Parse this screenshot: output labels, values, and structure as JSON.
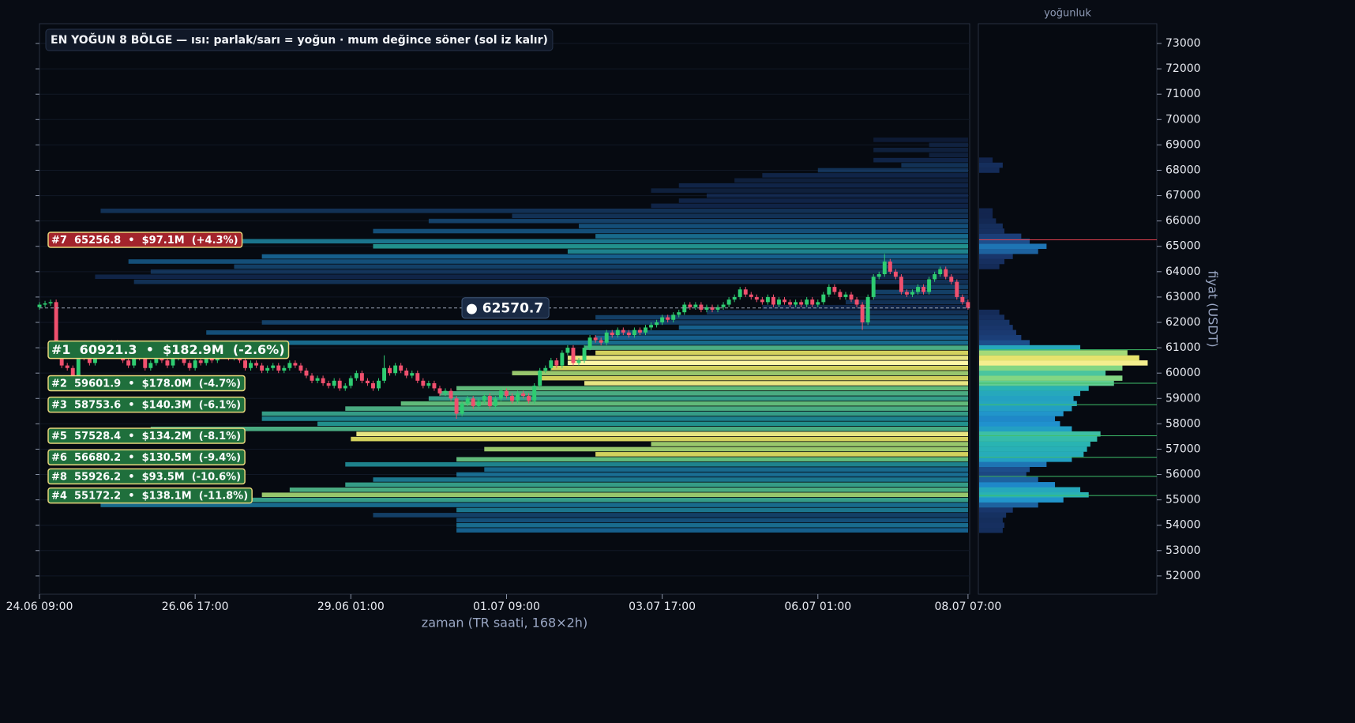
{
  "chart_data": {
    "type": "heatmap-candlestick",
    "title": "EN YOĞUN 8 BÖLGE — ısı: parlak/sarı = yoğun · mum değince söner (sol iz kalır)",
    "x_label": "zaman (TR saati, 168×2h)",
    "y_label": "fiyat (USDT)",
    "profile_label": "yoğunluk",
    "xlim": [
      0,
      167.3
    ],
    "xticks": [
      {
        "value": 0,
        "label": "24.06 09:00"
      },
      {
        "value": 28,
        "label": "26.06 17:00"
      },
      {
        "value": 56,
        "label": "29.06 01:00"
      },
      {
        "value": 84,
        "label": "01.07 09:00"
      },
      {
        "value": 112,
        "label": "03.07 17:00"
      },
      {
        "value": 140,
        "label": "06.07 01:00"
      },
      {
        "value": 167,
        "label": "08.07 07:00"
      }
    ],
    "ylim": [
      51280,
      73780
    ],
    "yticks": [
      52000,
      53000,
      54000,
      55000,
      56000,
      57000,
      58000,
      59000,
      60000,
      61000,
      62000,
      63000,
      64000,
      65000,
      66000,
      67000,
      68000,
      69000,
      70000,
      71000,
      72000,
      73000
    ],
    "grid": true,
    "profile_xlim": [
      0,
      104
    ],
    "colors": {
      "up": "#2ecc71",
      "down": "#f0506e",
      "zone_up": "#a3242c",
      "zone_down": "#1f6f3c",
      "zone_border": "#e9d77c"
    },
    "last_price": {
      "value": 62570.7,
      "label": "● 62570.7"
    },
    "candles": {
      "open": [
        62600,
        62700,
        62750,
        62800,
        60700,
        60300,
        60200,
        59900,
        61000,
        60600,
        60400,
        60800,
        61100,
        60900,
        61200,
        60800,
        60500,
        60300,
        60700,
        60600,
        60200,
        60400,
        60900,
        60500,
        60300,
        60600,
        60800,
        60400,
        60200,
        60500,
        60400,
        60600,
        60500,
        60700,
        60900,
        60600,
        60700,
        60500,
        60200,
        60400,
        60300,
        60100,
        60200,
        60300,
        60100,
        60200,
        60400,
        60300,
        60100,
        59900,
        59700,
        59800,
        59600,
        59500,
        59700,
        59400,
        59500,
        59800,
        60000,
        59700,
        59600,
        59400,
        59700,
        60200,
        60000,
        60300,
        60100,
        59900,
        60000,
        59700,
        59500,
        59600,
        59400,
        59200,
        59300,
        59000,
        58400,
        58800,
        59000,
        58700,
        58900,
        59100,
        58700,
        59000,
        59300,
        59100,
        58900,
        59200,
        59100,
        58900,
        59500,
        60100,
        60200,
        60500,
        60300,
        60800,
        61000,
        60400,
        60500,
        61000,
        61400,
        61300,
        61200,
        61600,
        61500,
        61700,
        61600,
        61500,
        61700,
        61600,
        61800,
        61900,
        62000,
        62200,
        62100,
        62300,
        62400,
        62700,
        62600,
        62700,
        62500,
        62600,
        62500,
        62600,
        62700,
        62900,
        63000,
        63300,
        63100,
        63000,
        62900,
        62800,
        63000,
        62700,
        62900,
        62800,
        62700,
        62800,
        62700,
        62900,
        62700,
        62800,
        63100,
        63400,
        63200,
        63000,
        63100,
        62900,
        62700,
        62000,
        63000,
        63800,
        63900,
        64400,
        64000,
        63800,
        63200,
        63100,
        63200,
        63400,
        63200,
        63700,
        63900,
        64100,
        63800,
        63600,
        63000,
        62800
      ],
      "high": [
        62800,
        62850,
        62900,
        62900,
        60800,
        60400,
        60300,
        61100,
        61100,
        60700,
        60900,
        61200,
        61200,
        61300,
        61300,
        60900,
        60600,
        60800,
        60800,
        60700,
        60500,
        61000,
        61000,
        60600,
        60700,
        60900,
        60900,
        60500,
        60600,
        60600,
        60700,
        60700,
        60800,
        61000,
        61000,
        60800,
        60800,
        60600,
        60500,
        60500,
        60400,
        60300,
        60400,
        60400,
        60300,
        60500,
        60500,
        60400,
        60200,
        60000,
        59900,
        59900,
        59700,
        59800,
        59800,
        59600,
        59900,
        60100,
        60100,
        59800,
        59700,
        59800,
        60700,
        60300,
        60400,
        60400,
        60200,
        60100,
        60100,
        59800,
        59700,
        59700,
        59500,
        59400,
        59400,
        59100,
        58900,
        59100,
        59100,
        59000,
        59200,
        59200,
        59100,
        59400,
        59400,
        59200,
        59300,
        59300,
        59200,
        59600,
        60200,
        60300,
        60600,
        60600,
        60900,
        61100,
        61100,
        60600,
        61100,
        61500,
        61500,
        61400,
        61700,
        61700,
        61800,
        61800,
        61700,
        61800,
        61800,
        61900,
        62000,
        62100,
        62300,
        62300,
        62400,
        62500,
        62800,
        62800,
        62800,
        62800,
        62700,
        62700,
        62700,
        62800,
        63000,
        63100,
        63400,
        63400,
        63200,
        63100,
        63000,
        63100,
        63100,
        63000,
        63000,
        62900,
        62900,
        62900,
        63000,
        63000,
        62900,
        63200,
        63500,
        63500,
        63300,
        63200,
        63200,
        63000,
        62800,
        63100,
        63900,
        64000,
        64700,
        64500,
        64100,
        63900,
        63300,
        63300,
        63500,
        63500,
        63800,
        64000,
        64200,
        64200,
        63900,
        63700,
        63100,
        62900
      ],
      "low": [
        62500,
        62600,
        62650,
        60600,
        60200,
        60100,
        59800,
        59800,
        60500,
        60300,
        60300,
        60700,
        60800,
        60800,
        60700,
        60400,
        60200,
        60200,
        60500,
        60100,
        60100,
        60300,
        60400,
        60200,
        60200,
        60500,
        60300,
        60100,
        60100,
        60300,
        60300,
        60400,
        60400,
        60600,
        60500,
        60500,
        60400,
        60100,
        60100,
        60200,
        60000,
        60000,
        60100,
        60000,
        60000,
        60100,
        60200,
        60000,
        59800,
        59600,
        59600,
        59500,
        59400,
        59400,
        59300,
        59300,
        59400,
        59700,
        59600,
        59500,
        59300,
        59300,
        59600,
        59900,
        59900,
        60000,
        59800,
        59800,
        59600,
        59400,
        59400,
        59300,
        59100,
        59100,
        58900,
        58200,
        58300,
        58700,
        58600,
        58600,
        58800,
        58600,
        58600,
        58900,
        59000,
        58800,
        58800,
        59000,
        58800,
        58800,
        59400,
        60000,
        60100,
        60200,
        60200,
        60700,
        60300,
        60300,
        60400,
        60900,
        61200,
        61100,
        61100,
        61400,
        61400,
        61500,
        61400,
        61400,
        61500,
        61500,
        61700,
        61800,
        61900,
        62000,
        62000,
        62200,
        62300,
        62500,
        62500,
        62400,
        62400,
        62400,
        62400,
        62500,
        62600,
        62800,
        62900,
        63000,
        62900,
        62800,
        62700,
        62700,
        62600,
        62600,
        62700,
        62600,
        62600,
        62600,
        62600,
        62600,
        62600,
        62700,
        63000,
        63100,
        62900,
        62900,
        62800,
        62600,
        61700,
        61900,
        62900,
        63700,
        63800,
        63900,
        63700,
        63100,
        63000,
        63000,
        63100,
        63100,
        63100,
        63600,
        63800,
        63700,
        63500,
        62900,
        62700,
        62500
      ],
      "close": [
        62700,
        62750,
        62800,
        60700,
        60300,
        60200,
        59900,
        61000,
        60600,
        60400,
        60800,
        61100,
        60900,
        61200,
        60800,
        60500,
        60300,
        60700,
        60600,
        60200,
        60400,
        60900,
        60500,
        60300,
        60600,
        60800,
        60400,
        60200,
        60500,
        60400,
        60600,
        60500,
        60700,
        60900,
        60600,
        60700,
        60500,
        60200,
        60400,
        60300,
        60100,
        60200,
        60300,
        60100,
        60200,
        60400,
        60300,
        60100,
        59900,
        59700,
        59800,
        59600,
        59500,
        59700,
        59400,
        59500,
        59800,
        60000,
        59700,
        59600,
        59400,
        59700,
        60200,
        60000,
        60300,
        60100,
        59900,
        60000,
        59700,
        59500,
        59600,
        59400,
        59200,
        59300,
        59000,
        58400,
        58800,
        59000,
        58700,
        58900,
        59100,
        58700,
        59000,
        59300,
        59100,
        58900,
        59200,
        59100,
        58900,
        59500,
        60100,
        60200,
        60500,
        60300,
        60800,
        61000,
        60400,
        60500,
        61000,
        61400,
        61300,
        61200,
        61600,
        61500,
        61700,
        61600,
        61500,
        61700,
        61600,
        61800,
        61900,
        62000,
        62200,
        62100,
        62300,
        62400,
        62700,
        62600,
        62700,
        62500,
        62600,
        62500,
        62600,
        62700,
        62900,
        63000,
        63300,
        63100,
        63000,
        62900,
        62800,
        63000,
        62700,
        62900,
        62800,
        62700,
        62800,
        62700,
        62900,
        62700,
        62800,
        63100,
        63400,
        63200,
        63000,
        63100,
        62900,
        62700,
        62000,
        63000,
        63800,
        63900,
        64400,
        64000,
        63800,
        63200,
        63100,
        63200,
        63400,
        63200,
        63700,
        63900,
        64100,
        63800,
        63600,
        63000,
        62800,
        62570.7
      ]
    },
    "levels": {
      "prices": [
        53800,
        54000,
        54200,
        54400,
        54600,
        54800,
        55000,
        55200,
        55400,
        55600,
        55800,
        56000,
        56200,
        56400,
        56600,
        56800,
        57000,
        57200,
        57400,
        57600,
        57800,
        58000,
        58200,
        58400,
        58600,
        58800,
        59000,
        59200,
        59400,
        59600,
        59800,
        60000,
        60200,
        60400,
        60600,
        60800,
        61000,
        61200,
        61400,
        61600,
        61800,
        62000,
        62200,
        62400,
        62600,
        62800,
        63000,
        63200,
        63400,
        63600,
        63800,
        64000,
        64200,
        64400,
        64600,
        64800,
        65000,
        65200,
        65400,
        65600,
        65800,
        66000,
        66200,
        66400,
        66600,
        66800,
        67000,
        67200,
        67400,
        67600,
        67800,
        68000,
        68200,
        68400,
        68600,
        68800,
        69000,
        69200
      ],
      "heat_start": [
        75,
        75,
        75,
        60,
        75,
        11,
        20,
        40,
        45,
        55,
        60,
        75,
        80,
        55,
        75,
        100,
        80,
        110,
        56,
        57,
        20,
        50,
        40,
        40,
        55,
        65,
        70,
        72,
        75,
        98,
        90,
        85,
        92,
        95,
        95,
        100,
        98,
        20,
        100,
        30,
        115,
        40,
        100,
        120,
        130,
        145,
        150,
        150,
        155,
        17,
        10,
        20,
        35,
        16,
        40,
        95,
        60,
        30,
        100,
        60,
        97,
        70,
        85,
        11,
        110,
        115,
        120,
        110,
        115,
        125,
        130,
        140,
        155,
        150,
        160,
        150,
        160,
        150
      ],
      "heat": [
        0.45,
        0.5,
        0.4,
        0.35,
        0.55,
        0.5,
        0.7,
        0.85,
        0.75,
        0.7,
        0.55,
        0.5,
        0.5,
        0.6,
        0.8,
        0.9,
        0.85,
        0.85,
        0.9,
        0.95,
        0.75,
        0.65,
        0.6,
        0.7,
        0.75,
        0.8,
        0.7,
        0.75,
        0.8,
        0.95,
        0.9,
        0.85,
        0.9,
        1.0,
        0.95,
        0.9,
        0.75,
        0.5,
        0.45,
        0.4,
        0.45,
        0.35,
        0.35,
        0.3,
        0.25,
        0.3,
        0.3,
        0.35,
        0.35,
        0.3,
        0.25,
        0.3,
        0.35,
        0.4,
        0.45,
        0.6,
        0.65,
        0.55,
        0.5,
        0.4,
        0.4,
        0.35,
        0.3,
        0.3,
        0.25,
        0.25,
        0.25,
        0.2,
        0.25,
        0.2,
        0.25,
        0.3,
        0.3,
        0.25,
        0.2,
        0.2,
        0.2,
        0.15
      ],
      "profile": [
        14,
        15,
        14,
        16,
        20,
        35,
        50,
        65,
        60,
        45,
        35,
        28,
        30,
        40,
        55,
        62,
        64,
        66,
        70,
        72,
        55,
        48,
        45,
        50,
        55,
        58,
        56,
        60,
        65,
        80,
        85,
        75,
        85,
        100,
        95,
        88,
        60,
        30,
        25,
        22,
        20,
        18,
        15,
        12,
        0,
        0,
        0,
        0,
        0,
        0,
        0,
        0,
        12,
        15,
        20,
        35,
        40,
        30,
        25,
        15,
        14,
        10,
        8,
        8,
        0,
        0,
        0,
        0,
        0,
        0,
        0,
        12,
        14,
        8,
        0,
        0,
        0,
        0
      ]
    },
    "zones": [
      {
        "label": "#7  65256.8  •  $97.1M  (+4.3%)",
        "rank": 7,
        "price": 65256.8,
        "notional": 97100000,
        "change": 4.3
      },
      {
        "label": "#1  60921.3  •  $182.9M  (-2.6%)",
        "rank": 1,
        "price": 60921.3,
        "notional": 182900000,
        "change": -2.6
      },
      {
        "label": "#2  59601.9  •  $178.0M  (-4.7%)",
        "rank": 2,
        "price": 59601.9,
        "notional": 178000000,
        "change": -4.7
      },
      {
        "label": "#3  58753.6  •  $140.3M  (-6.1%)",
        "rank": 3,
        "price": 58753.6,
        "notional": 140300000,
        "change": -6.1
      },
      {
        "label": "#5  57528.4  •  $134.2M  (-8.1%)",
        "rank": 5,
        "price": 57528.4,
        "notional": 134200000,
        "change": -8.1
      },
      {
        "label": "#6  56680.2  •  $130.5M  (-9.4%)",
        "rank": 6,
        "price": 56680.2,
        "notional": 130500000,
        "change": -9.4
      },
      {
        "label": "#8  55926.2  •  $93.5M  (-10.6%)",
        "rank": 8,
        "price": 55926.2,
        "notional": 93500000,
        "change": -10.6
      },
      {
        "label": "#4  55172.2  •  $138.1M  (-11.8%)",
        "rank": 4,
        "price": 55172.2,
        "notional": 138100000,
        "change": -11.8
      }
    ]
  }
}
